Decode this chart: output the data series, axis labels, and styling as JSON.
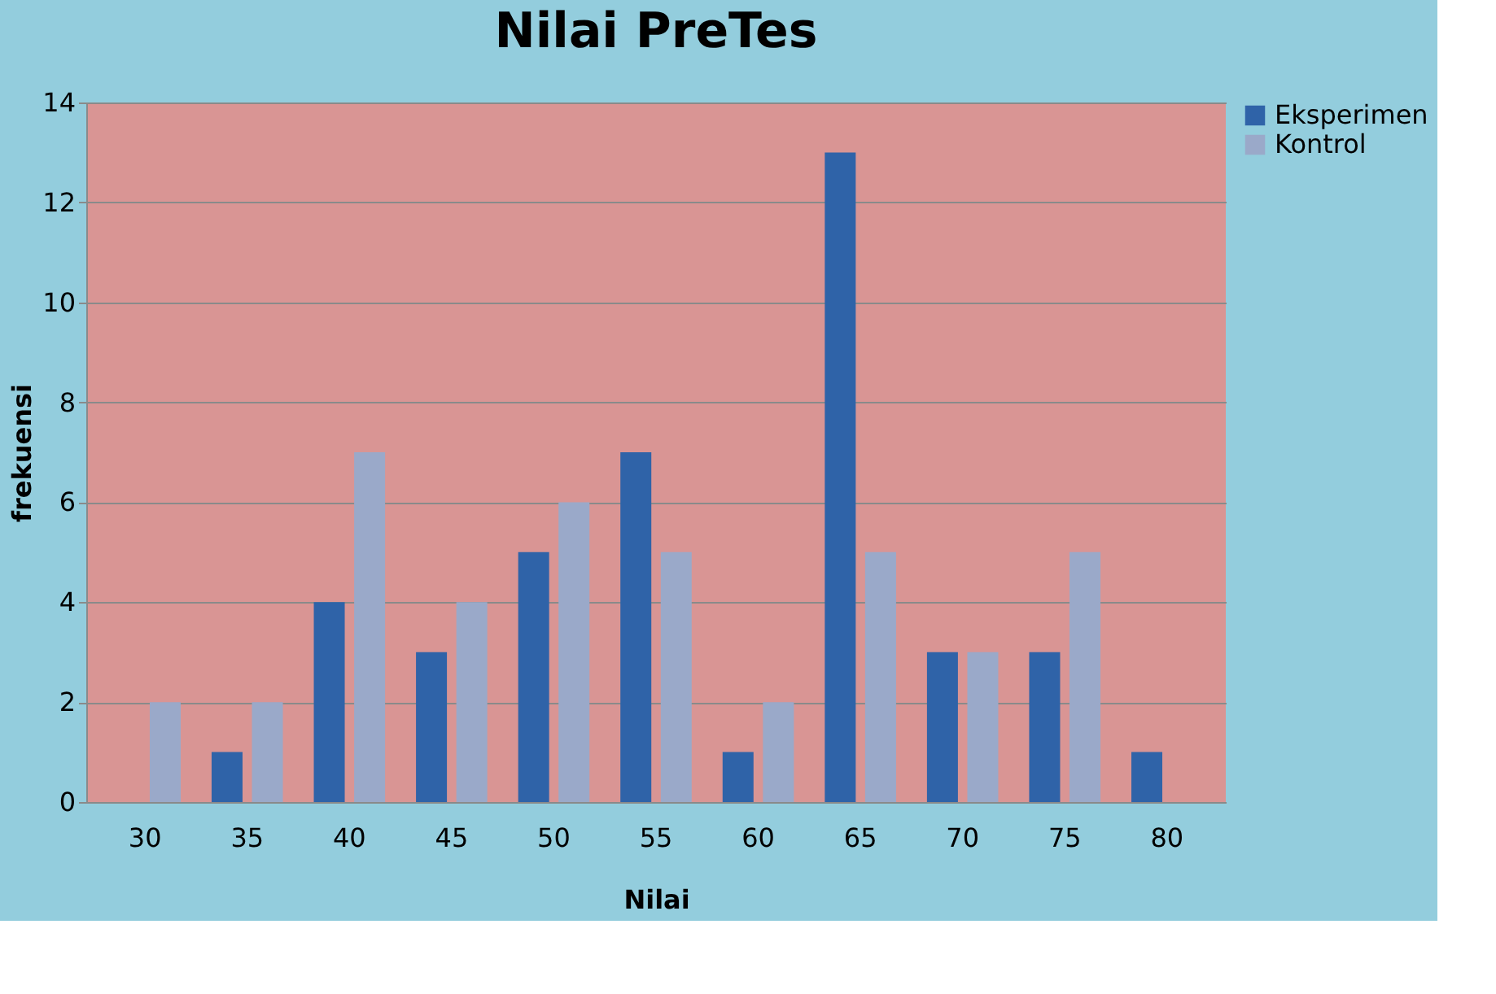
{
  "chart_data": {
    "type": "bar",
    "title": "Nilai PreTes",
    "xlabel": "Nilai",
    "ylabel": "frekuensi",
    "categories": [
      "30",
      "35",
      "40",
      "45",
      "50",
      "55",
      "60",
      "65",
      "70",
      "75",
      "80"
    ],
    "series": [
      {
        "name": "Eksperimen",
        "color": "#2f63a8",
        "values": [
          0,
          1,
          4,
          3,
          5,
          7,
          1,
          13,
          3,
          3,
          1
        ]
      },
      {
        "name": "Kontrol",
        "color": "#9aa9c9",
        "values": [
          2,
          2,
          7,
          4,
          6,
          5,
          2,
          5,
          3,
          5,
          0
        ]
      }
    ],
    "ylim": [
      0,
      14
    ],
    "yticks": [
      0,
      2,
      4,
      6,
      8,
      10,
      12,
      14
    ],
    "grid": "y",
    "legend": "right"
  }
}
